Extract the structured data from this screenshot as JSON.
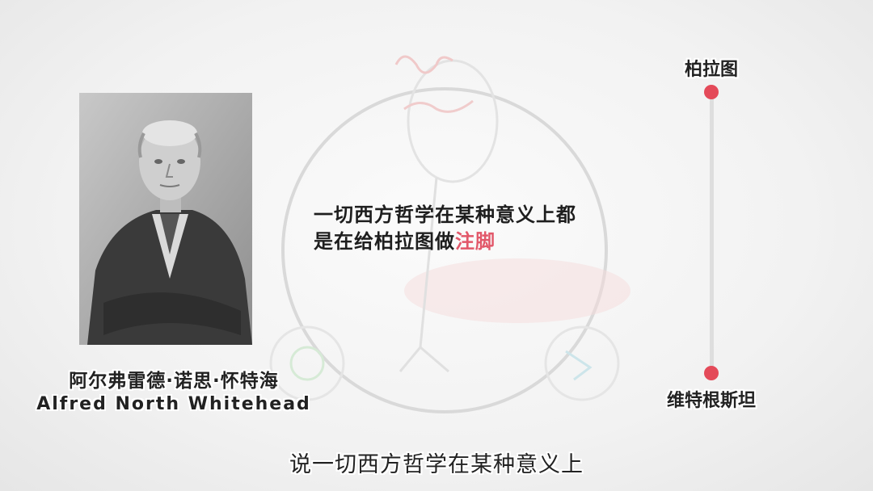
{
  "person": {
    "name_zh": "阿尔弗雷德·诺思·怀特海",
    "name_en": "Alfred North Whitehead"
  },
  "quote": {
    "line1": "一切西方哲学在某种意义上都",
    "line2_prefix": "是在给柏拉图做",
    "line2_highlight": "注脚"
  },
  "timeline": {
    "top_label": "柏拉图",
    "bottom_label": "维特根斯坦"
  },
  "subtitle": "说一切西方哲学在某种意义上",
  "colors": {
    "accent": "#e44a59",
    "highlight_text": "#e2586a",
    "timeline_line": "#dedede"
  }
}
